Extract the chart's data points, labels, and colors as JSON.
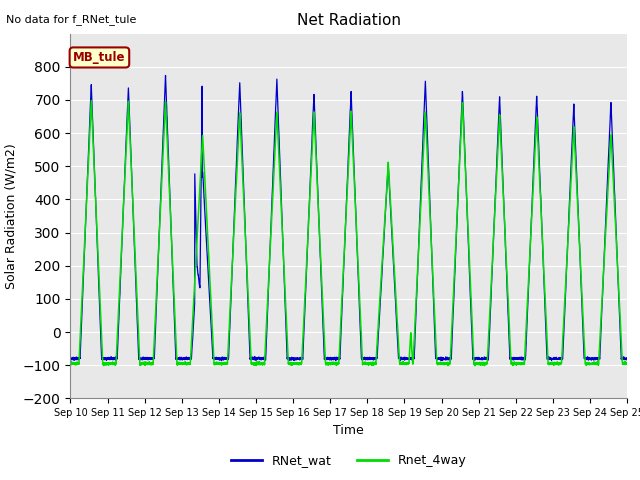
{
  "title": "Net Radiation",
  "xlabel": "Time",
  "ylabel": "Solar Radiation (W/m2)",
  "top_left_text": "No data for f_RNet_tule",
  "legend_label1": "RNet_wat",
  "legend_label2": "Rnet_4way",
  "legend_box_label": "MB_tule",
  "ylim": [
    -200,
    900
  ],
  "yticks": [
    -200,
    -100,
    0,
    100,
    200,
    300,
    400,
    500,
    600,
    700,
    800
  ],
  "color_blue": "#0000cc",
  "color_green": "#00dd00",
  "color_legend_box_bg": "#ffffcc",
  "color_legend_box_border": "#990000",
  "color_legend_box_text": "#990000",
  "bg_color": "#e8e8e8",
  "days": 15,
  "start_day": 10,
  "samples_per_day": 288
}
